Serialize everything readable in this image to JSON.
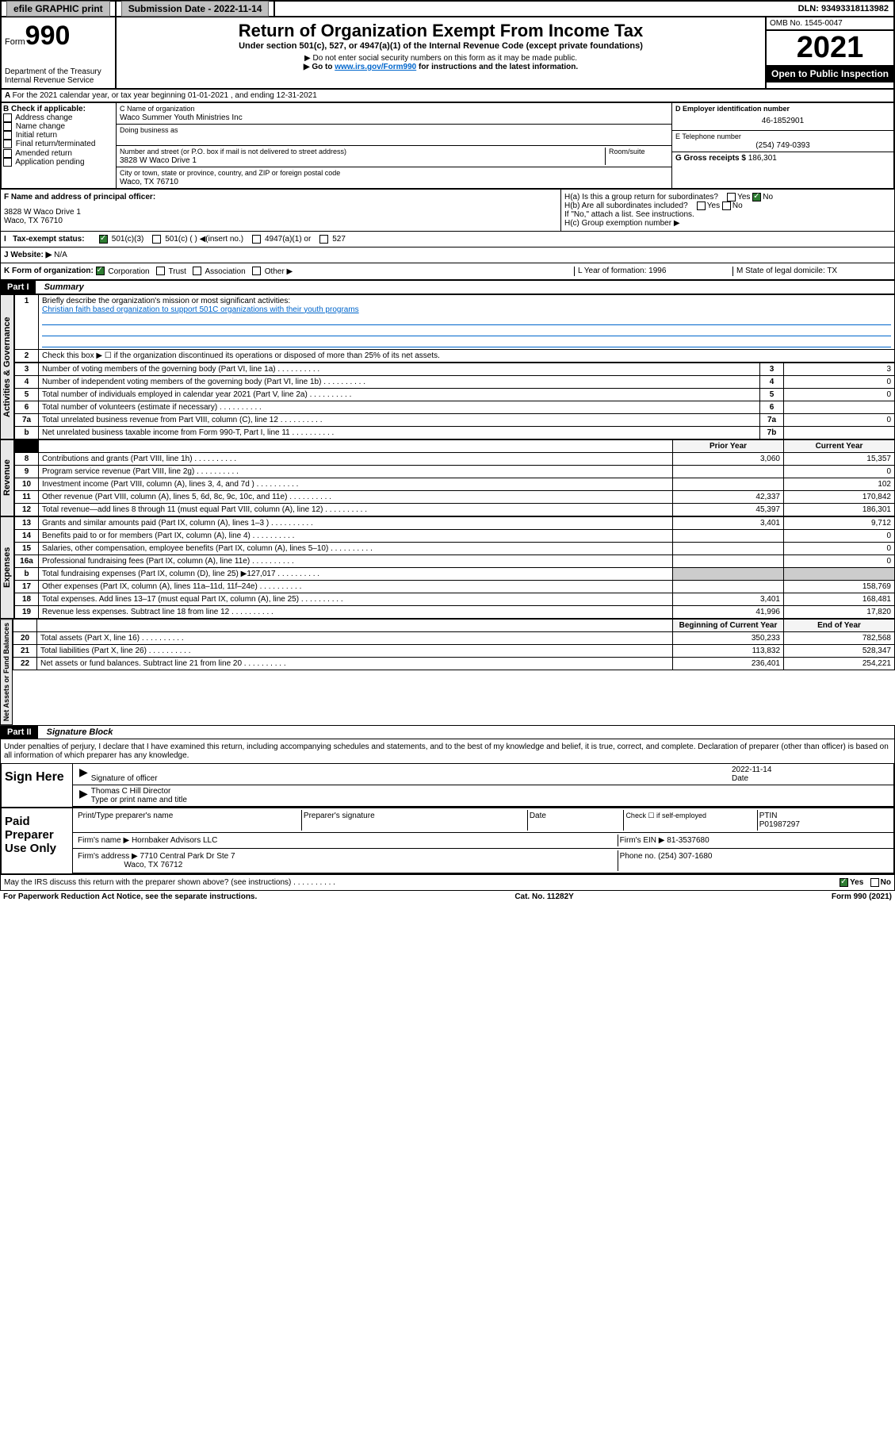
{
  "top": {
    "efile": "efile GRAPHIC print",
    "subdate_label": "Submission Date - 2022-11-14",
    "dln_label": "DLN: 93493318113982"
  },
  "header": {
    "form_prefix": "Form",
    "form_num": "990",
    "dept": "Department of the Treasury",
    "irs": "Internal Revenue Service",
    "title": "Return of Organization Exempt From Income Tax",
    "sub1": "Under section 501(c), 527, or 4947(a)(1) of the Internal Revenue Code (except private foundations)",
    "sub2": "▶ Do not enter social security numbers on this form as it may be made public.",
    "sub3_pre": "▶ Go to ",
    "sub3_link": "www.irs.gov/Form990",
    "sub3_post": " for instructions and the latest information.",
    "omb": "OMB No. 1545-0047",
    "year": "2021",
    "open": "Open to Public Inspection"
  },
  "A": {
    "line": "For the 2021 calendar year, or tax year beginning 01-01-2021  , and ending 12-31-2021"
  },
  "B": {
    "label": "B Check if applicable:",
    "opts": [
      "Address change",
      "Name change",
      "Initial return",
      "Final return/terminated",
      "Amended return",
      "Application pending"
    ]
  },
  "C": {
    "name_label": "C Name of organization",
    "name": "Waco Summer Youth Ministries Inc",
    "dba_label": "Doing business as",
    "addr_label": "Number and street (or P.O. box if mail is not delivered to street address)",
    "addr": "3828 W Waco Drive 1",
    "room_label": "Room/suite",
    "city_label": "City or town, state or province, country, and ZIP or foreign postal code",
    "city": "Waco, TX  76710"
  },
  "D": {
    "label": "D Employer identification number",
    "val": "46-1852901"
  },
  "E": {
    "label": "E Telephone number",
    "val": "(254) 749-0393"
  },
  "G": {
    "label": "G Gross receipts $",
    "val": "186,301"
  },
  "F": {
    "label": "F  Name and address of principal officer:",
    "addr1": "3828 W Waco Drive 1",
    "addr2": "Waco, TX  76710"
  },
  "H": {
    "a": "H(a)  Is this a group return for subordinates?",
    "b": "H(b)  Are all subordinates included?",
    "ifno": "If \"No,\" attach a list. See instructions.",
    "c": "H(c)  Group exemption number ▶",
    "yes": "Yes",
    "no": "No"
  },
  "I": {
    "label": "Tax-exempt status:",
    "opts": [
      "501(c)(3)",
      "501(c) (  ) ◀(insert no.)",
      "4947(a)(1) or",
      "527"
    ]
  },
  "J": {
    "label": "Website: ▶",
    "val": "N/A"
  },
  "K": {
    "label": "K Form of organization:",
    "opts": [
      "Corporation",
      "Trust",
      "Association",
      "Other ▶"
    ]
  },
  "L": {
    "label": "L Year of formation: 1996"
  },
  "M": {
    "label": "M State of legal domicile: TX"
  },
  "part1": {
    "header": "Part I",
    "title": "Summary"
  },
  "summary": {
    "q1": "Briefly describe the organization's mission or most significant activities:",
    "q1a": "Christian faith based organization to support 501C organizations with their youth programs",
    "q2": "Check this box ▶ ☐  if the organization discontinued its operations or disposed of more than 25% of its net assets."
  },
  "gov_rows": [
    {
      "n": "3",
      "t": "Number of voting members of the governing body (Part VI, line 1a)",
      "rn": "3",
      "v": "3"
    },
    {
      "n": "4",
      "t": "Number of independent voting members of the governing body (Part VI, line 1b)",
      "rn": "4",
      "v": "0"
    },
    {
      "n": "5",
      "t": "Total number of individuals employed in calendar year 2021 (Part V, line 2a)",
      "rn": "5",
      "v": "0"
    },
    {
      "n": "6",
      "t": "Total number of volunteers (estimate if necessary)",
      "rn": "6",
      "v": ""
    },
    {
      "n": "7a",
      "t": "Total unrelated business revenue from Part VIII, column (C), line 12",
      "rn": "7a",
      "v": "0"
    },
    {
      "n": "b",
      "t": "Net unrelated business taxable income from Form 990-T, Part I, line 11",
      "rn": "7b",
      "v": ""
    }
  ],
  "rev_header": {
    "prior": "Prior Year",
    "current": "Current Year",
    "boy": "Beginning of Current Year",
    "eoy": "End of Year"
  },
  "rev_rows": [
    {
      "n": "8",
      "t": "Contributions and grants (Part VIII, line 1h)",
      "p": "3,060",
      "c": "15,357"
    },
    {
      "n": "9",
      "t": "Program service revenue (Part VIII, line 2g)",
      "p": "",
      "c": "0"
    },
    {
      "n": "10",
      "t": "Investment income (Part VIII, column (A), lines 3, 4, and 7d )",
      "p": "",
      "c": "102"
    },
    {
      "n": "11",
      "t": "Other revenue (Part VIII, column (A), lines 5, 6d, 8c, 9c, 10c, and 11e)",
      "p": "42,337",
      "c": "170,842"
    },
    {
      "n": "12",
      "t": "Total revenue—add lines 8 through 11 (must equal Part VIII, column (A), line 12)",
      "p": "45,397",
      "c": "186,301"
    }
  ],
  "exp_rows": [
    {
      "n": "13",
      "t": "Grants and similar amounts paid (Part IX, column (A), lines 1–3 )",
      "p": "3,401",
      "c": "9,712"
    },
    {
      "n": "14",
      "t": "Benefits paid to or for members (Part IX, column (A), line 4)",
      "p": "",
      "c": "0"
    },
    {
      "n": "15",
      "t": "Salaries, other compensation, employee benefits (Part IX, column (A), lines 5–10)",
      "p": "",
      "c": "0"
    },
    {
      "n": "16a",
      "t": "Professional fundraising fees (Part IX, column (A), line 11e)",
      "p": "",
      "c": "0"
    },
    {
      "n": "b",
      "t": "Total fundraising expenses (Part IX, column (D), line 25) ▶127,017",
      "p": "—",
      "c": "—"
    },
    {
      "n": "17",
      "t": "Other expenses (Part IX, column (A), lines 11a–11d, 11f–24e)",
      "p": "",
      "c": "158,769"
    },
    {
      "n": "18",
      "t": "Total expenses. Add lines 13–17 (must equal Part IX, column (A), line 25)",
      "p": "3,401",
      "c": "168,481"
    },
    {
      "n": "19",
      "t": "Revenue less expenses. Subtract line 18 from line 12",
      "p": "41,996",
      "c": "17,820"
    }
  ],
  "net_rows": [
    {
      "n": "20",
      "t": "Total assets (Part X, line 16)",
      "p": "350,233",
      "c": "782,568"
    },
    {
      "n": "21",
      "t": "Total liabilities (Part X, line 26)",
      "p": "113,832",
      "c": "528,347"
    },
    {
      "n": "22",
      "t": "Net assets or fund balances. Subtract line 21 from line 20",
      "p": "236,401",
      "c": "254,221"
    }
  ],
  "section_labels": {
    "gov": "Activities & Governance",
    "rev": "Revenue",
    "exp": "Expenses",
    "net": "Net Assets or Fund Balances"
  },
  "part2": {
    "header": "Part II",
    "title": "Signature Block",
    "decl": "Under penalties of perjury, I declare that I have examined this return, including accompanying schedules and statements, and to the best of my knowledge and belief, it is true, correct, and complete. Declaration of preparer (other than officer) is based on all information of which preparer has any knowledge."
  },
  "sign": {
    "here": "Sign Here",
    "sig_label": "Signature of officer",
    "date_label": "Date",
    "date": "2022-11-14",
    "name": "Thomas C Hill  Director",
    "name_label": "Type or print name and title"
  },
  "paid": {
    "label": "Paid Preparer Use Only",
    "col1": "Print/Type preparer's name",
    "col2": "Preparer's signature",
    "col3": "Date",
    "col4_a": "Check ☐ if self-employed",
    "col4_b": "PTIN",
    "ptin": "P01987297",
    "firm_label": "Firm's name    ▶",
    "firm": "Hornbaker Advisors LLC",
    "ein_label": "Firm's EIN ▶",
    "ein": "81-3537680",
    "addr_label": "Firm's address ▶",
    "addr": "7710 Central Park Dr Ste 7",
    "addr2": "Waco, TX  76712",
    "phone_label": "Phone no.",
    "phone": "(254) 307-1680",
    "discuss": "May the IRS discuss this return with the preparer shown above? (see instructions)"
  },
  "footer": {
    "left": "For Paperwork Reduction Act Notice, see the separate instructions.",
    "mid": "Cat. No. 11282Y",
    "right": "Form 990 (2021)"
  }
}
